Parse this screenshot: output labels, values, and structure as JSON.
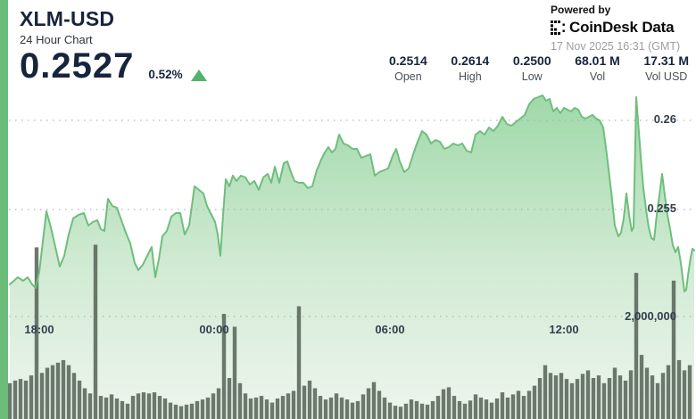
{
  "header": {
    "symbol": "XLM-USD",
    "subtitle": "24 Hour Chart",
    "price": "0.2527",
    "change_pct": "0.52%",
    "change_direction": "up",
    "change_color": "#52b26c"
  },
  "powered": {
    "label": "Powered by",
    "brand": "CoinDesk Data",
    "timestamp": "17 Nov 2025 16:31 (GMT)"
  },
  "stats": {
    "items": [
      {
        "value": "0.2514",
        "label": "Open"
      },
      {
        "value": "0.2614",
        "label": "High"
      },
      {
        "value": "0.2500",
        "label": "Low"
      },
      {
        "value": "68.01 M",
        "label": "Vol"
      },
      {
        "value": "17.31 M",
        "label": "Vol USD"
      }
    ]
  },
  "chart_data": {
    "type": "area",
    "title": "XLM-USD 24 Hour Chart",
    "legend": "none",
    "grid": "horizontal dotted",
    "x_axis_labels": [
      {
        "text": "18:00"
      },
      {
        "text": "00:00"
      },
      {
        "text": "06:00"
      },
      {
        "text": "12:00"
      }
    ],
    "price_gridlines": [
      {
        "label": "0.26",
        "value": 0.26
      },
      {
        "label": "0.255",
        "value": 0.255
      }
    ],
    "volume_gridlines": [
      {
        "label": "2,000,000",
        "value": 2000000
      }
    ],
    "price_axis": {
      "visible_min": 0.2495,
      "visible_max": 0.2625
    },
    "colors": {
      "line": "#6fbe7d",
      "fill_top": "#9ed8a8",
      "fill_bottom": "#eef5ee",
      "volume_bar": "#5f6c61",
      "grid": "#a9b0b6",
      "accent_strip": "#6abc78"
    },
    "price_series": [
      [
        11,
        0.2508
      ],
      [
        20,
        0.2512
      ],
      [
        26,
        0.251
      ],
      [
        31,
        0.2512
      ],
      [
        36,
        0.2508
      ],
      [
        40,
        0.2506
      ],
      [
        44,
        0.2515
      ],
      [
        48,
        0.2532
      ],
      [
        52,
        0.2549
      ],
      [
        57,
        0.254
      ],
      [
        62,
        0.2529
      ],
      [
        67,
        0.2518
      ],
      [
        72,
        0.2524
      ],
      [
        77,
        0.2536
      ],
      [
        82,
        0.2545
      ],
      [
        88,
        0.2547
      ],
      [
        94,
        0.2548
      ],
      [
        99,
        0.2541
      ],
      [
        104,
        0.2543
      ],
      [
        109,
        0.2544
      ],
      [
        113,
        0.2539
      ],
      [
        117,
        0.2538
      ],
      [
        121,
        0.2556
      ],
      [
        126,
        0.2552
      ],
      [
        131,
        0.2551
      ],
      [
        136,
        0.2544
      ],
      [
        141,
        0.2537
      ],
      [
        146,
        0.2531
      ],
      [
        151,
        0.252
      ],
      [
        155,
        0.2516
      ],
      [
        160,
        0.2519
      ],
      [
        165,
        0.2524
      ],
      [
        170,
        0.2529
      ],
      [
        174,
        0.2512
      ],
      [
        178,
        0.2522
      ],
      [
        182,
        0.2535
      ],
      [
        187,
        0.2538
      ],
      [
        192,
        0.2546
      ],
      [
        197,
        0.2548
      ],
      [
        202,
        0.2548
      ],
      [
        207,
        0.2536
      ],
      [
        212,
        0.2541
      ],
      [
        218,
        0.2563
      ],
      [
        223,
        0.2561
      ],
      [
        228,
        0.2559
      ],
      [
        232,
        0.2552
      ],
      [
        237,
        0.2547
      ],
      [
        241,
        0.2543
      ],
      [
        244,
        0.2536
      ],
      [
        247,
        0.2524
      ],
      [
        250,
        0.2547
      ],
      [
        253,
        0.2567
      ],
      [
        257,
        0.2563
      ],
      [
        261,
        0.2569
      ],
      [
        265,
        0.2566
      ],
      [
        270,
        0.2569
      ],
      [
        275,
        0.2568
      ],
      [
        280,
        0.2564
      ],
      [
        285,
        0.2566
      ],
      [
        290,
        0.2561
      ],
      [
        295,
        0.2568
      ],
      [
        300,
        0.257
      ],
      [
        304,
        0.2565
      ],
      [
        308,
        0.2574
      ],
      [
        313,
        0.2565
      ],
      [
        318,
        0.2576
      ],
      [
        322,
        0.2577
      ],
      [
        326,
        0.2571
      ],
      [
        330,
        0.2566
      ],
      [
        335,
        0.2565
      ],
      [
        340,
        0.2565
      ],
      [
        345,
        0.2562
      ],
      [
        350,
        0.2563
      ],
      [
        355,
        0.2572
      ],
      [
        360,
        0.2578
      ],
      [
        364,
        0.2582
      ],
      [
        368,
        0.2585
      ],
      [
        372,
        0.2582
      ],
      [
        376,
        0.2584
      ],
      [
        380,
        0.2592
      ],
      [
        385,
        0.2587
      ],
      [
        390,
        0.2586
      ],
      [
        395,
        0.2584
      ],
      [
        400,
        0.2584
      ],
      [
        405,
        0.2579
      ],
      [
        410,
        0.258
      ],
      [
        415,
        0.2581
      ],
      [
        420,
        0.2569
      ],
      [
        425,
        0.2571
      ],
      [
        430,
        0.2572
      ],
      [
        435,
        0.2573
      ],
      [
        440,
        0.258
      ],
      [
        444,
        0.2584
      ],
      [
        448,
        0.2577
      ],
      [
        453,
        0.2571
      ],
      [
        458,
        0.2573
      ],
      [
        463,
        0.2581
      ],
      [
        468,
        0.2588
      ],
      [
        473,
        0.2594
      ],
      [
        478,
        0.2592
      ],
      [
        483,
        0.2587
      ],
      [
        488,
        0.2589
      ],
      [
        493,
        0.2588
      ],
      [
        498,
        0.2584
      ],
      [
        503,
        0.2585
      ],
      [
        508,
        0.2587
      ],
      [
        513,
        0.2586
      ],
      [
        518,
        0.2587
      ],
      [
        523,
        0.2583
      ],
      [
        528,
        0.2582
      ],
      [
        533,
        0.2592
      ],
      [
        538,
        0.2594
      ],
      [
        543,
        0.2592
      ],
      [
        548,
        0.2596
      ],
      [
        553,
        0.2594
      ],
      [
        558,
        0.2597
      ],
      [
        563,
        0.2602
      ],
      [
        568,
        0.2598
      ],
      [
        573,
        0.2597
      ],
      [
        578,
        0.2599
      ],
      [
        583,
        0.2601
      ],
      [
        588,
        0.2603
      ],
      [
        593,
        0.2609
      ],
      [
        598,
        0.2612
      ],
      [
        603,
        0.2613
      ],
      [
        608,
        0.2614
      ],
      [
        612,
        0.2611
      ],
      [
        616,
        0.2612
      ],
      [
        620,
        0.2605
      ],
      [
        624,
        0.2607
      ],
      [
        628,
        0.2604
      ],
      [
        632,
        0.2607
      ],
      [
        636,
        0.2606
      ],
      [
        640,
        0.2605
      ],
      [
        644,
        0.2607
      ],
      [
        648,
        0.2606
      ],
      [
        652,
        0.2602
      ],
      [
        656,
        0.2601
      ],
      [
        660,
        0.2602
      ],
      [
        664,
        0.2603
      ],
      [
        668,
        0.2601
      ],
      [
        672,
        0.26
      ],
      [
        676,
        0.2596
      ],
      [
        680,
        0.2581
      ],
      [
        685,
        0.256
      ],
      [
        689,
        0.2541
      ],
      [
        693,
        0.2535
      ],
      [
        696,
        0.2537
      ],
      [
        699,
        0.2545
      ],
      [
        702,
        0.2559
      ],
      [
        705,
        0.2547
      ],
      [
        708,
        0.2538
      ],
      [
        710,
        0.254
      ],
      [
        713,
        0.2613
      ],
      [
        715,
        0.26
      ],
      [
        718,
        0.258
      ],
      [
        721,
        0.2562
      ],
      [
        724,
        0.255
      ],
      [
        727,
        0.254
      ],
      [
        730,
        0.2534
      ],
      [
        733,
        0.2533
      ],
      [
        736,
        0.2547
      ],
      [
        739,
        0.2558
      ],
      [
        742,
        0.257
      ],
      [
        745,
        0.2558
      ],
      [
        748,
        0.2547
      ],
      [
        751,
        0.2539
      ],
      [
        754,
        0.253
      ],
      [
        757,
        0.2526
      ],
      [
        760,
        0.2529
      ],
      [
        763,
        0.252
      ],
      [
        765,
        0.2512
      ],
      [
        767,
        0.2504
      ],
      [
        769,
        0.2505
      ],
      [
        771,
        0.2513
      ],
      [
        774,
        0.2523
      ],
      [
        776,
        0.2528
      ],
      [
        778,
        0.2527
      ]
    ],
    "volume_series": [
      [
        11,
        700000
      ],
      [
        17,
        750000
      ],
      [
        23,
        780000
      ],
      [
        29,
        750000
      ],
      [
        35,
        850000
      ],
      [
        41,
        3350000
      ],
      [
        47,
        900000
      ],
      [
        53,
        1000000
      ],
      [
        59,
        1050000
      ],
      [
        65,
        1100000
      ],
      [
        71,
        1150000
      ],
      [
        77,
        1050000
      ],
      [
        83,
        900000
      ],
      [
        89,
        750000
      ],
      [
        95,
        600000
      ],
      [
        101,
        500000
      ],
      [
        107,
        3400000
      ],
      [
        113,
        450000
      ],
      [
        119,
        420000
      ],
      [
        125,
        480000
      ],
      [
        131,
        400000
      ],
      [
        137,
        350000
      ],
      [
        143,
        300000
      ],
      [
        149,
        450000
      ],
      [
        155,
        500000
      ],
      [
        161,
        520000
      ],
      [
        167,
        500000
      ],
      [
        173,
        520000
      ],
      [
        179,
        450000
      ],
      [
        185,
        400000
      ],
      [
        191,
        320000
      ],
      [
        197,
        280000
      ],
      [
        203,
        250000
      ],
      [
        209,
        280000
      ],
      [
        215,
        300000
      ],
      [
        221,
        350000
      ],
      [
        227,
        380000
      ],
      [
        233,
        420000
      ],
      [
        239,
        500000
      ],
      [
        245,
        600000
      ],
      [
        251,
        2050000
      ],
      [
        257,
        800000
      ],
      [
        263,
        1800000
      ],
      [
        269,
        700000
      ],
      [
        275,
        500000
      ],
      [
        281,
        400000
      ],
      [
        287,
        420000
      ],
      [
        293,
        450000
      ],
      [
        299,
        380000
      ],
      [
        305,
        320000
      ],
      [
        311,
        400000
      ],
      [
        317,
        450000
      ],
      [
        323,
        500000
      ],
      [
        329,
        550000
      ],
      [
        335,
        2200000
      ],
      [
        341,
        650000
      ],
      [
        347,
        750000
      ],
      [
        353,
        600000
      ],
      [
        359,
        450000
      ],
      [
        365,
        380000
      ],
      [
        371,
        420000
      ],
      [
        377,
        500000
      ],
      [
        383,
        420000
      ],
      [
        389,
        380000
      ],
      [
        395,
        320000
      ],
      [
        401,
        350000
      ],
      [
        407,
        480000
      ],
      [
        413,
        600000
      ],
      [
        419,
        720000
      ],
      [
        425,
        550000
      ],
      [
        431,
        420000
      ],
      [
        437,
        320000
      ],
      [
        443,
        260000
      ],
      [
        449,
        240000
      ],
      [
        455,
        300000
      ],
      [
        461,
        380000
      ],
      [
        467,
        350000
      ],
      [
        473,
        300000
      ],
      [
        479,
        280000
      ],
      [
        485,
        350000
      ],
      [
        491,
        450000
      ],
      [
        497,
        580000
      ],
      [
        503,
        620000
      ],
      [
        509,
        450000
      ],
      [
        515,
        350000
      ],
      [
        521,
        300000
      ],
      [
        527,
        360000
      ],
      [
        533,
        480000
      ],
      [
        539,
        420000
      ],
      [
        545,
        380000
      ],
      [
        551,
        320000
      ],
      [
        557,
        400000
      ],
      [
        563,
        520000
      ],
      [
        569,
        420000
      ],
      [
        575,
        480000
      ],
      [
        581,
        550000
      ],
      [
        587,
        450000
      ],
      [
        593,
        550000
      ],
      [
        599,
        650000
      ],
      [
        605,
        800000
      ],
      [
        611,
        1050000
      ],
      [
        617,
        900000
      ],
      [
        623,
        850000
      ],
      [
        629,
        900000
      ],
      [
        635,
        780000
      ],
      [
        641,
        700000
      ],
      [
        647,
        780000
      ],
      [
        653,
        880000
      ],
      [
        659,
        950000
      ],
      [
        665,
        800000
      ],
      [
        671,
        850000
      ],
      [
        677,
        700000
      ],
      [
        683,
        800000
      ],
      [
        689,
        1000000
      ],
      [
        695,
        850000
      ],
      [
        701,
        750000
      ],
      [
        707,
        950000
      ],
      [
        713,
        2850000
      ],
      [
        719,
        1250000
      ],
      [
        725,
        1000000
      ],
      [
        731,
        850000
      ],
      [
        737,
        700000
      ],
      [
        743,
        900000
      ],
      [
        749,
        1050000
      ],
      [
        755,
        2700000
      ],
      [
        761,
        1150000
      ],
      [
        767,
        950000
      ],
      [
        773,
        1050000
      ]
    ]
  }
}
